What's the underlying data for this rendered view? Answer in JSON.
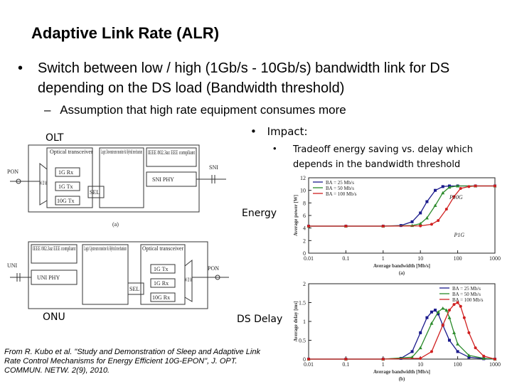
{
  "title": "Adaptive Link Rate (ALR)",
  "bullets": {
    "main_marker": "•",
    "main": "Switch between low / high (1Gb/s - 10Gb/s) bandwidth link for DS depending on the DS load (Bandwidth threshold)",
    "sub_marker": "–",
    "sub": "Assumption that high rate equipment consumes more",
    "impact_marker": "•",
    "impact": "Impact:",
    "tradeoff_marker": "•",
    "tradeoff": "Tradeoff energy saving vs. delay which depends in the bandwidth threshold"
  },
  "labels": {
    "olt": "OLT",
    "onu": "ONU",
    "energy": "Energy",
    "delay": "DS Delay"
  },
  "olt_diagram": {
    "optical": "Optical transceiver",
    "logic": "Logic Downstream monitor & Hybrid mechanism",
    "ieee": "IEEE 802.3az EEE compliant",
    "snphy": "SNI PHY",
    "sni": "SNI",
    "pon": "PON",
    "rx": "1G Rx",
    "tx": "1G Tx",
    "tx10": "10G Tx",
    "sel": "SEL",
    "wdm": "W D M",
    "caption": "(a)"
  },
  "onu_diagram": {
    "ieee": "IEEE 802.3az EEE compliant",
    "logic": "Logic Upstream monitor & Hybrid mechanism",
    "optical": "Optical transceiver",
    "uniphy": "UNI PHY",
    "uni": "UNI",
    "pon": "PON",
    "tx": "1G Tx",
    "rx": "1G Rx",
    "rx10": "10G Rx",
    "sel": "SEL",
    "wdm": "W D M"
  },
  "chart_data": [
    {
      "type": "line",
      "xlabel": "Average bandwidth [Mb/s]",
      "ylabel": "Average power [W]",
      "xscale": "log",
      "xlim": [
        0.01,
        1000
      ],
      "ylim": [
        0,
        12
      ],
      "xticks": [
        "0.01",
        "0.1",
        "1",
        "10",
        "100",
        "1000"
      ],
      "yticks": [
        "0",
        "2",
        "4",
        "6",
        "8",
        "10",
        "12"
      ],
      "caption": "(a)",
      "annotations": [
        "P10G",
        "P1G"
      ],
      "legend": "top-left",
      "series": [
        {
          "name": "BA = 25 Mb/s",
          "color": "#1a1a8c",
          "marker": "square",
          "x": [
            0.01,
            0.1,
            1,
            3,
            6,
            10,
            15,
            25,
            40,
            60,
            100,
            300,
            1000
          ],
          "y": [
            4.3,
            4.3,
            4.3,
            4.4,
            5.0,
            6.4,
            8.2,
            10.0,
            10.6,
            10.7,
            10.7,
            10.7,
            10.7
          ]
        },
        {
          "name": "BA = 50 Mb/s",
          "color": "#2a8a2a",
          "marker": "triangle",
          "x": [
            0.01,
            0.1,
            1,
            6,
            10,
            15,
            25,
            40,
            60,
            100,
            300,
            1000
          ],
          "y": [
            4.3,
            4.3,
            4.3,
            4.4,
            4.7,
            5.6,
            7.6,
            9.6,
            10.5,
            10.7,
            10.7,
            10.7
          ]
        },
        {
          "name": "BA = 100 Mb/s",
          "color": "#d02020",
          "marker": "circle",
          "x": [
            0.01,
            0.1,
            1,
            10,
            20,
            30,
            50,
            80,
            120,
            200,
            300,
            1000
          ],
          "y": [
            4.3,
            4.3,
            4.3,
            4.35,
            4.6,
            5.2,
            7.0,
            9.0,
            10.3,
            10.6,
            10.7,
            10.7
          ]
        }
      ]
    },
    {
      "type": "line",
      "xlabel": "Average bandwidth [Mb/s]",
      "ylabel": "Average delay [ms]",
      "xscale": "log",
      "xlim": [
        0.01,
        1000
      ],
      "ylim": [
        0,
        2
      ],
      "xticks": [
        "0.01",
        "0.1",
        "1",
        "10",
        "100",
        "1000"
      ],
      "yticks": [
        "0",
        "0.5",
        "1",
        "1.5",
        "2"
      ],
      "caption": "(b)",
      "legend": "top-right",
      "series": [
        {
          "name": "BA = 25 Mb/s",
          "color": "#1a1a8c",
          "marker": "square",
          "x": [
            0.01,
            0.1,
            1,
            3,
            6,
            10,
            15,
            20,
            25,
            30,
            40,
            60,
            100,
            200,
            500,
            1000
          ],
          "y": [
            0,
            0,
            0,
            0.02,
            0.2,
            0.7,
            1.1,
            1.25,
            1.3,
            1.2,
            0.9,
            0.5,
            0.2,
            0.05,
            0.01,
            0
          ]
        },
        {
          "name": "BA = 50 Mb/s",
          "color": "#2a8a2a",
          "marker": "triangle",
          "x": [
            0.01,
            0.1,
            1,
            6,
            10,
            20,
            30,
            40,
            50,
            60,
            80,
            100,
            200,
            500,
            1000
          ],
          "y": [
            0,
            0,
            0,
            0.05,
            0.3,
            0.95,
            1.25,
            1.35,
            1.3,
            1.1,
            0.7,
            0.4,
            0.1,
            0.02,
            0
          ]
        },
        {
          "name": "BA = 100 Mb/s",
          "color": "#d02020",
          "marker": "circle",
          "x": [
            0.01,
            0.1,
            1,
            10,
            20,
            40,
            60,
            80,
            100,
            120,
            150,
            200,
            300,
            500,
            1000
          ],
          "y": [
            0,
            0,
            0,
            0.02,
            0.2,
            0.9,
            1.3,
            1.45,
            1.5,
            1.4,
            1.1,
            0.7,
            0.3,
            0.08,
            0
          ]
        }
      ]
    }
  ],
  "citation": "From R. Kubo et al. \"Study and Demonstration of Sleep and Adaptive Link Rate Control Mechanisms for Energy Efficient 10G-EPON\", J. OPT. COMMUN. NETW. 2(9), 2010."
}
